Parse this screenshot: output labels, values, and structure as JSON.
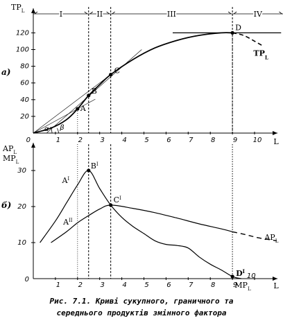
{
  "chart_data": [
    {
      "type": "line",
      "panel_label": "а)",
      "ylabel": "TPL",
      "xlabel": "L",
      "xlim": [
        0,
        11.5
      ],
      "ylim": [
        0,
        135
      ],
      "x_ticks": [
        1,
        2,
        3,
        4,
        5,
        6,
        7,
        8,
        9,
        10
      ],
      "y_ticks": [
        20,
        40,
        60,
        80,
        100,
        120
      ],
      "origin_label": "0",
      "stages": [
        "I",
        "II",
        "III",
        "IV"
      ],
      "stage_bounds": [
        2.5,
        3.5,
        9
      ],
      "series": [
        {
          "name": "TPL",
          "x": [
            0,
            0.8,
            1.5,
            2,
            2.5,
            3,
            3.5,
            4.5,
            5.5,
            6.5,
            7.5,
            8.5,
            9
          ],
          "y": [
            0,
            6,
            16,
            29,
            45,
            58,
            70,
            88,
            102,
            111,
            117,
            120,
            120
          ]
        },
        {
          "name": "",
          "style": "dashed",
          "x": [
            9,
            9.5,
            10,
            10.4
          ],
          "y": [
            120,
            117,
            110,
            104
          ]
        }
      ],
      "points": [
        {
          "label": "A",
          "x": 2,
          "y": 29
        },
        {
          "label": "B",
          "x": 2.5,
          "y": 45
        },
        {
          "label": "C",
          "x": 3.5,
          "y": 70
        },
        {
          "label": "D",
          "x": 9,
          "y": 120
        }
      ],
      "angle_labels": [
        "α",
        "β"
      ]
    },
    {
      "type": "line",
      "panel_label": "б)",
      "ylabel_top": "APL",
      "ylabel_bottom": "MPL",
      "xlabel": "L",
      "xlim": [
        0,
        11.5
      ],
      "ylim": [
        0,
        36
      ],
      "x_ticks": [
        1,
        2,
        3,
        4,
        5,
        6,
        7,
        8,
        9,
        10
      ],
      "y_ticks": [
        10,
        20,
        30
      ],
      "origin_label": "0",
      "series": [
        {
          "name": "MPL",
          "x": [
            0.3,
            1,
            1.5,
            2,
            2.5,
            3,
            3.5,
            4,
            4.5,
            5,
            5.5,
            6,
            6.5,
            7,
            7.5,
            8,
            8.5,
            9,
            9.4
          ],
          "y": [
            10,
            16,
            21,
            26,
            30,
            25,
            20.4,
            17,
            14.5,
            12.5,
            10.5,
            9.5,
            9.2,
            8.5,
            6,
            4,
            2.4,
            0.6,
            0
          ]
        },
        {
          "name": "APL",
          "x": [
            0.8,
            1.5,
            2,
            2.5,
            3,
            3.5,
            4.5,
            5.5,
            6.5,
            7.5,
            8.5,
            9
          ],
          "y": [
            10,
            13,
            15.5,
            17.5,
            19.3,
            20.4,
            19.5,
            18.3,
            16.8,
            15.2,
            13.8,
            13
          ]
        },
        {
          "name": "",
          "style": "dashed",
          "x": [
            9,
            9.6,
            10.2,
            11
          ],
          "y": [
            13,
            12.2,
            11.3,
            10.5
          ]
        }
      ],
      "points": [
        {
          "label": "B",
          "sup": "I",
          "x": 2.5,
          "y": 30
        },
        {
          "label": "C",
          "sup": "I",
          "x": 3.5,
          "y": 20.4
        },
        {
          "label": "D",
          "sup": "I",
          "x": 9,
          "y": 0.6
        }
      ],
      "curve_labels": [
        {
          "label": "A",
          "sup": "I"
        },
        {
          "label": "A",
          "sup": "II"
        },
        {
          "label": "APL"
        },
        {
          "label": "MPL"
        }
      ],
      "extra_tick_label": "10"
    }
  ],
  "caption": {
    "line1": "Рис. 7.1. Криві сукупного, граничного та",
    "line2": "середнього продуктів змінного фактора"
  }
}
